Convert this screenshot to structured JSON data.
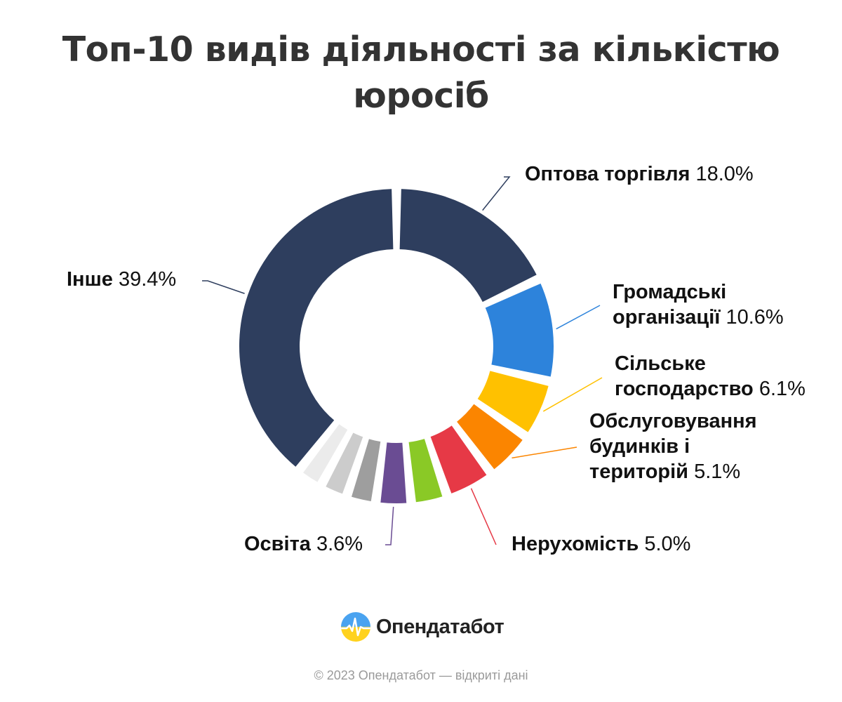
{
  "title": {
    "line1": "Топ-10 видів діяльності за кількістю",
    "line2": "юросіб"
  },
  "chart_data": {
    "type": "donut",
    "title": "Топ-10 видів діяльності за кількістю юросіб",
    "unit": "%",
    "slices": [
      {
        "name": "Оптова торгівля",
        "value": 18.0,
        "label_name": "Оптова торгівля",
        "label_value": "18.0%",
        "color": "#2e3e5e"
      },
      {
        "name": "Громадські організації",
        "value": 10.6,
        "label_name": "Громадські організації",
        "label_value": "10.6%",
        "color": "#2d83db"
      },
      {
        "name": "Сільське господарство",
        "value": 6.1,
        "label_name": "Сільське господарство",
        "label_value": "6.1%",
        "color": "#ffc100"
      },
      {
        "name": "Обслуговування будинків і територій",
        "value": 5.1,
        "label_name": "Обслуговування будинків і територій",
        "label_value": "5.1%",
        "color": "#fb8500"
      },
      {
        "name": "Нерухомість",
        "value": 5.0,
        "label_name": "Нерухомість",
        "label_value": "5.0%",
        "color": "#e63946"
      },
      {
        "name": "",
        "value": 3.7,
        "label_name": "",
        "label_value": "",
        "color": "#8ac926"
      },
      {
        "name": "Освіта",
        "value": 3.6,
        "label_name": "Освіта",
        "label_value": "3.6%",
        "color": "#6a4c93"
      },
      {
        "name": "",
        "value": 3.0,
        "label_name": "",
        "label_value": "",
        "color": "#9e9e9e"
      },
      {
        "name": "",
        "value": 2.8,
        "label_name": "",
        "label_value": "",
        "color": "#cccccc"
      },
      {
        "name": "",
        "value": 2.7,
        "label_name": "",
        "label_value": "",
        "color": "#ebebeb"
      },
      {
        "name": "Інше",
        "value": 39.4,
        "label_name": "Інше",
        "label_value": "39.4%",
        "color": "#2e3e5e"
      }
    ]
  },
  "labels": {
    "opt_name": "Оптова торгівля",
    "opt_pct": "18.0%",
    "gro_name1": "Громадські",
    "gro_name2": "організації",
    "gro_pct": "10.6%",
    "sil_name1": "Сільське",
    "sil_name2": "господарство",
    "sil_pct": "6.1%",
    "obs_name1": "Обслуговування",
    "obs_name2": "будинків і",
    "obs_name3": "територій",
    "obs_pct": "5.1%",
    "ner_name": "Нерухомість",
    "ner_pct": "5.0%",
    "osv_name": "Освіта",
    "osv_pct": "3.6%",
    "inshe_name": "Інше",
    "inshe_pct": "39.4%"
  },
  "logo": {
    "icon": "opendatabot-logo-icon",
    "text": "Опендатабот"
  },
  "footer": "© 2023 Опендатабот — відкриті дані"
}
